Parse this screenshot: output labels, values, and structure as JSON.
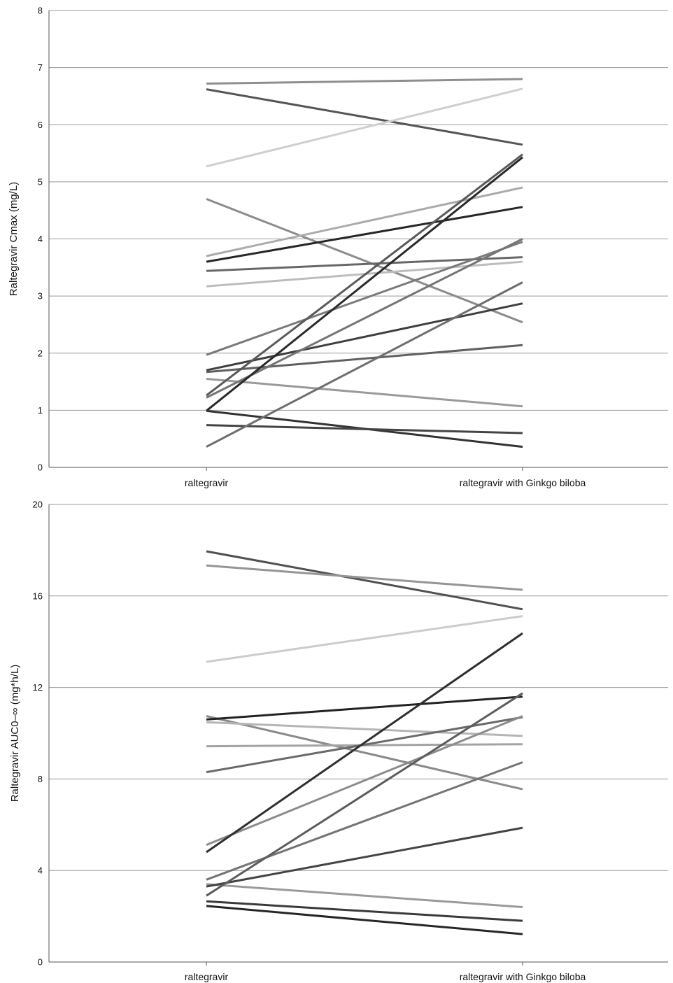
{
  "chart_data": [
    {
      "type": "line",
      "categories": [
        "raltegravir",
        "raltegravir with Ginkgo biloba"
      ],
      "ylabel": "Raltegravir Cmax (mg/L)",
      "ylim": [
        0,
        8
      ],
      "yticks": [
        0,
        1,
        2,
        3,
        4,
        5,
        6,
        7,
        8
      ],
      "grid": true,
      "series": [
        {
          "values": [
            6.72,
            6.8
          ],
          "color": "#8f8f8f"
        },
        {
          "values": [
            6.62,
            5.65
          ],
          "color": "#555555"
        },
        {
          "values": [
            5.27,
            6.63
          ],
          "color": "#cfcfcf"
        },
        {
          "values": [
            4.7,
            2.54
          ],
          "color": "#8c8c8c"
        },
        {
          "values": [
            3.7,
            4.9
          ],
          "color": "#ababab"
        },
        {
          "values": [
            3.6,
            4.56
          ],
          "color": "#262626"
        },
        {
          "values": [
            3.44,
            3.68
          ],
          "color": "#686868"
        },
        {
          "values": [
            3.17,
            3.6
          ],
          "color": "#bdbdbd"
        },
        {
          "values": [
            1.97,
            3.95
          ],
          "color": "#7a7a7a"
        },
        {
          "values": [
            1.7,
            2.87
          ],
          "color": "#3f3f3f"
        },
        {
          "values": [
            1.67,
            2.14
          ],
          "color": "#606060"
        },
        {
          "values": [
            1.55,
            1.07
          ],
          "color": "#9a9a9a"
        },
        {
          "values": [
            1.26,
            5.48
          ],
          "color": "#5a5a5a"
        },
        {
          "values": [
            1.22,
            4.0
          ],
          "color": "#757575"
        },
        {
          "values": [
            0.99,
            5.43
          ],
          "color": "#2a2a2a"
        },
        {
          "values": [
            0.99,
            0.36
          ],
          "color": "#333333"
        },
        {
          "values": [
            0.74,
            0.6
          ],
          "color": "#444444"
        },
        {
          "values": [
            0.36,
            3.24
          ],
          "color": "#6e6e6e"
        }
      ]
    },
    {
      "type": "line",
      "categories": [
        "raltegravir",
        "raltegravir with Ginkgo biloba"
      ],
      "ylabel": "Raltegravir AUC0–∞ (mg*h/L)",
      "ylim": [
        0,
        20
      ],
      "yticks": [
        0,
        4,
        8,
        12,
        16,
        20
      ],
      "grid": true,
      "series": [
        {
          "values": [
            17.95,
            15.42
          ],
          "color": "#505050"
        },
        {
          "values": [
            17.33,
            16.27
          ],
          "color": "#959595"
        },
        {
          "values": [
            13.12,
            15.12
          ],
          "color": "#cccccc"
        },
        {
          "values": [
            10.75,
            7.55
          ],
          "color": "#8a8a8a"
        },
        {
          "values": [
            10.6,
            11.6
          ],
          "color": "#222222"
        },
        {
          "values": [
            10.48,
            9.88
          ],
          "color": "#b5b5b5"
        },
        {
          "values": [
            9.43,
            9.52
          ],
          "color": "#a3a3a3"
        },
        {
          "values": [
            8.3,
            10.7
          ],
          "color": "#6a6a6a"
        },
        {
          "values": [
            5.12,
            10.75
          ],
          "color": "#8c8c8c"
        },
        {
          "values": [
            4.8,
            14.37
          ],
          "color": "#2f2f2f"
        },
        {
          "values": [
            3.6,
            8.73
          ],
          "color": "#747474"
        },
        {
          "values": [
            3.4,
            2.4
          ],
          "color": "#9a9a9a"
        },
        {
          "values": [
            3.3,
            5.87
          ],
          "color": "#444444"
        },
        {
          "values": [
            2.9,
            11.75
          ],
          "color": "#5c5c5c"
        },
        {
          "values": [
            2.65,
            1.8
          ],
          "color": "#3a3a3a"
        },
        {
          "values": [
            2.45,
            1.22
          ],
          "color": "#262626"
        }
      ]
    }
  ]
}
